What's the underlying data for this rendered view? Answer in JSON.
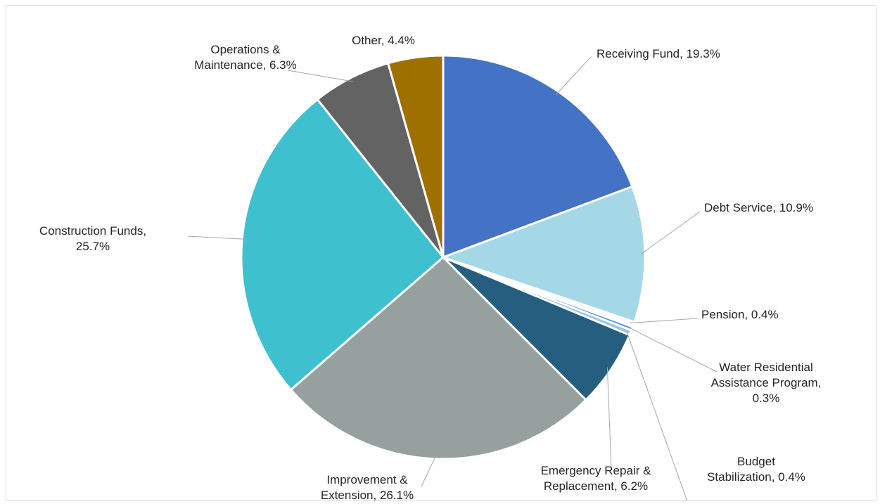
{
  "chart_data": {
    "type": "pie",
    "start_angle_deg": 0,
    "direction": "clockwise",
    "slices": [
      {
        "name": "Receiving Fund",
        "value": 19.3,
        "label_lines": [
          "Receiving Fund, 19.3%"
        ],
        "color": "#4472C4"
      },
      {
        "name": "Debt Service",
        "value": 10.9,
        "label_lines": [
          "Debt Service, 10.9%"
        ],
        "color": "#A5D8E6"
      },
      {
        "name": "Pension",
        "value": 0.4,
        "label_lines": [
          "Pension, 0.4%"
        ],
        "color": "#FFFFFF"
      },
      {
        "name": "Water Residential Assistance Program",
        "value": 0.3,
        "label_lines": [
          "Water Residential",
          "Assistance Program,",
          "0.3%"
        ],
        "color": "#5B9BD5"
      },
      {
        "name": "Budget Stabilization",
        "value": 0.4,
        "label_lines": [
          "Budget",
          "Stabilization, 0.4%"
        ],
        "color": "#9DC3E6"
      },
      {
        "name": "Emergency Repair & Replacement",
        "value": 6.2,
        "label_lines": [
          "Emergency Repair &",
          "Replacement, 6.2%"
        ],
        "color": "#255E7E"
      },
      {
        "name": "Improvement & Extension",
        "value": 26.1,
        "label_lines": [
          "Improvement &",
          "Extension, 26.1%"
        ],
        "color": "#95A09F"
      },
      {
        "name": "Construction Funds",
        "value": 25.7,
        "label_lines": [
          "Construction Funds,",
          "25.7%"
        ],
        "color": "#3FC0CE"
      },
      {
        "name": "Operations & Maintenance",
        "value": 6.3,
        "label_lines": [
          "Operations &",
          "Maintenance, 6.3%"
        ],
        "color": "#636363"
      },
      {
        "name": "Other",
        "value": 4.4,
        "label_lines": [
          "Other, 4.4%"
        ],
        "color": "#9E7000"
      }
    ]
  }
}
